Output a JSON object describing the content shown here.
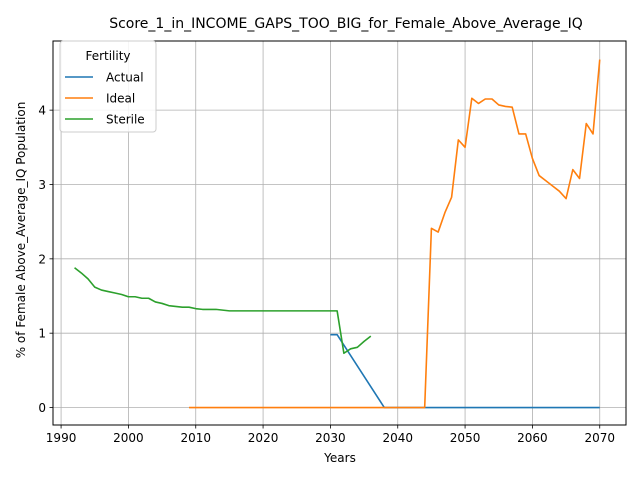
{
  "chart_data": {
    "type": "line",
    "title": "Score_1_in_INCOME_GAPS_TOO_BIG_for_Female_Above_Average_IQ",
    "xlabel": "Years",
    "ylabel": "% of Female Above_Average_IQ Population",
    "xlim": [
      1988.8,
      2073.9
    ],
    "ylim": [
      -0.235,
      4.93
    ],
    "x_ticks": [
      1990,
      2000,
      2010,
      2020,
      2030,
      2040,
      2050,
      2060,
      2070
    ],
    "y_ticks": [
      0,
      1,
      2,
      3,
      4
    ],
    "grid": true,
    "legend": {
      "title": "Fertility",
      "placement": "top-left"
    },
    "series": [
      {
        "name": "Actual",
        "color": "#1f77b4",
        "points": [
          [
            2030,
            0.98
          ],
          [
            2031,
            0.98
          ],
          [
            2038,
            0
          ],
          [
            2040,
            0
          ],
          [
            2050,
            0
          ],
          [
            2060,
            0
          ],
          [
            2070,
            0
          ]
        ]
      },
      {
        "name": "Ideal",
        "color": "#ff7f0e",
        "points": [
          [
            2009,
            0
          ],
          [
            2020,
            0
          ],
          [
            2030,
            0
          ],
          [
            2044,
            0
          ],
          [
            2045,
            2.41
          ],
          [
            2046,
            2.36
          ],
          [
            2047,
            2.62
          ],
          [
            2048,
            2.83
          ],
          [
            2049,
            3.6
          ],
          [
            2050,
            3.5
          ],
          [
            2051,
            4.16
          ],
          [
            2052,
            4.09
          ],
          [
            2053,
            4.15
          ],
          [
            2054,
            4.15
          ],
          [
            2055,
            4.07
          ],
          [
            2056,
            4.05
          ],
          [
            2057,
            4.04
          ],
          [
            2058,
            3.68
          ],
          [
            2059,
            3.68
          ],
          [
            2060,
            3.35
          ],
          [
            2061,
            3.12
          ],
          [
            2062,
            3.05
          ],
          [
            2063,
            2.98
          ],
          [
            2064,
            2.91
          ],
          [
            2065,
            2.81
          ],
          [
            2066,
            3.2
          ],
          [
            2067,
            3.08
          ],
          [
            2068,
            3.82
          ],
          [
            2069,
            3.68
          ],
          [
            2070,
            4.68
          ]
        ]
      },
      {
        "name": "Sterile",
        "color": "#2ca02c",
        "points": [
          [
            1992,
            1.88
          ],
          [
            1993,
            1.81
          ],
          [
            1994,
            1.73
          ],
          [
            1995,
            1.62
          ],
          [
            1996,
            1.58
          ],
          [
            1997,
            1.56
          ],
          [
            1998,
            1.54
          ],
          [
            1999,
            1.52
          ],
          [
            2000,
            1.49
          ],
          [
            2001,
            1.49
          ],
          [
            2002,
            1.47
          ],
          [
            2003,
            1.47
          ],
          [
            2004,
            1.42
          ],
          [
            2005,
            1.4
          ],
          [
            2006,
            1.37
          ],
          [
            2007,
            1.36
          ],
          [
            2008,
            1.35
          ],
          [
            2009,
            1.35
          ],
          [
            2010,
            1.33
          ],
          [
            2011,
            1.32
          ],
          [
            2012,
            1.32
          ],
          [
            2013,
            1.32
          ],
          [
            2014,
            1.31
          ],
          [
            2015,
            1.3
          ],
          [
            2020,
            1.3
          ],
          [
            2025,
            1.3
          ],
          [
            2030,
            1.3
          ],
          [
            2031,
            1.3
          ],
          [
            2032,
            0.73
          ],
          [
            2033,
            0.79
          ],
          [
            2034,
            0.81
          ],
          [
            2035,
            0.89
          ],
          [
            2036,
            0.96
          ]
        ]
      }
    ]
  }
}
